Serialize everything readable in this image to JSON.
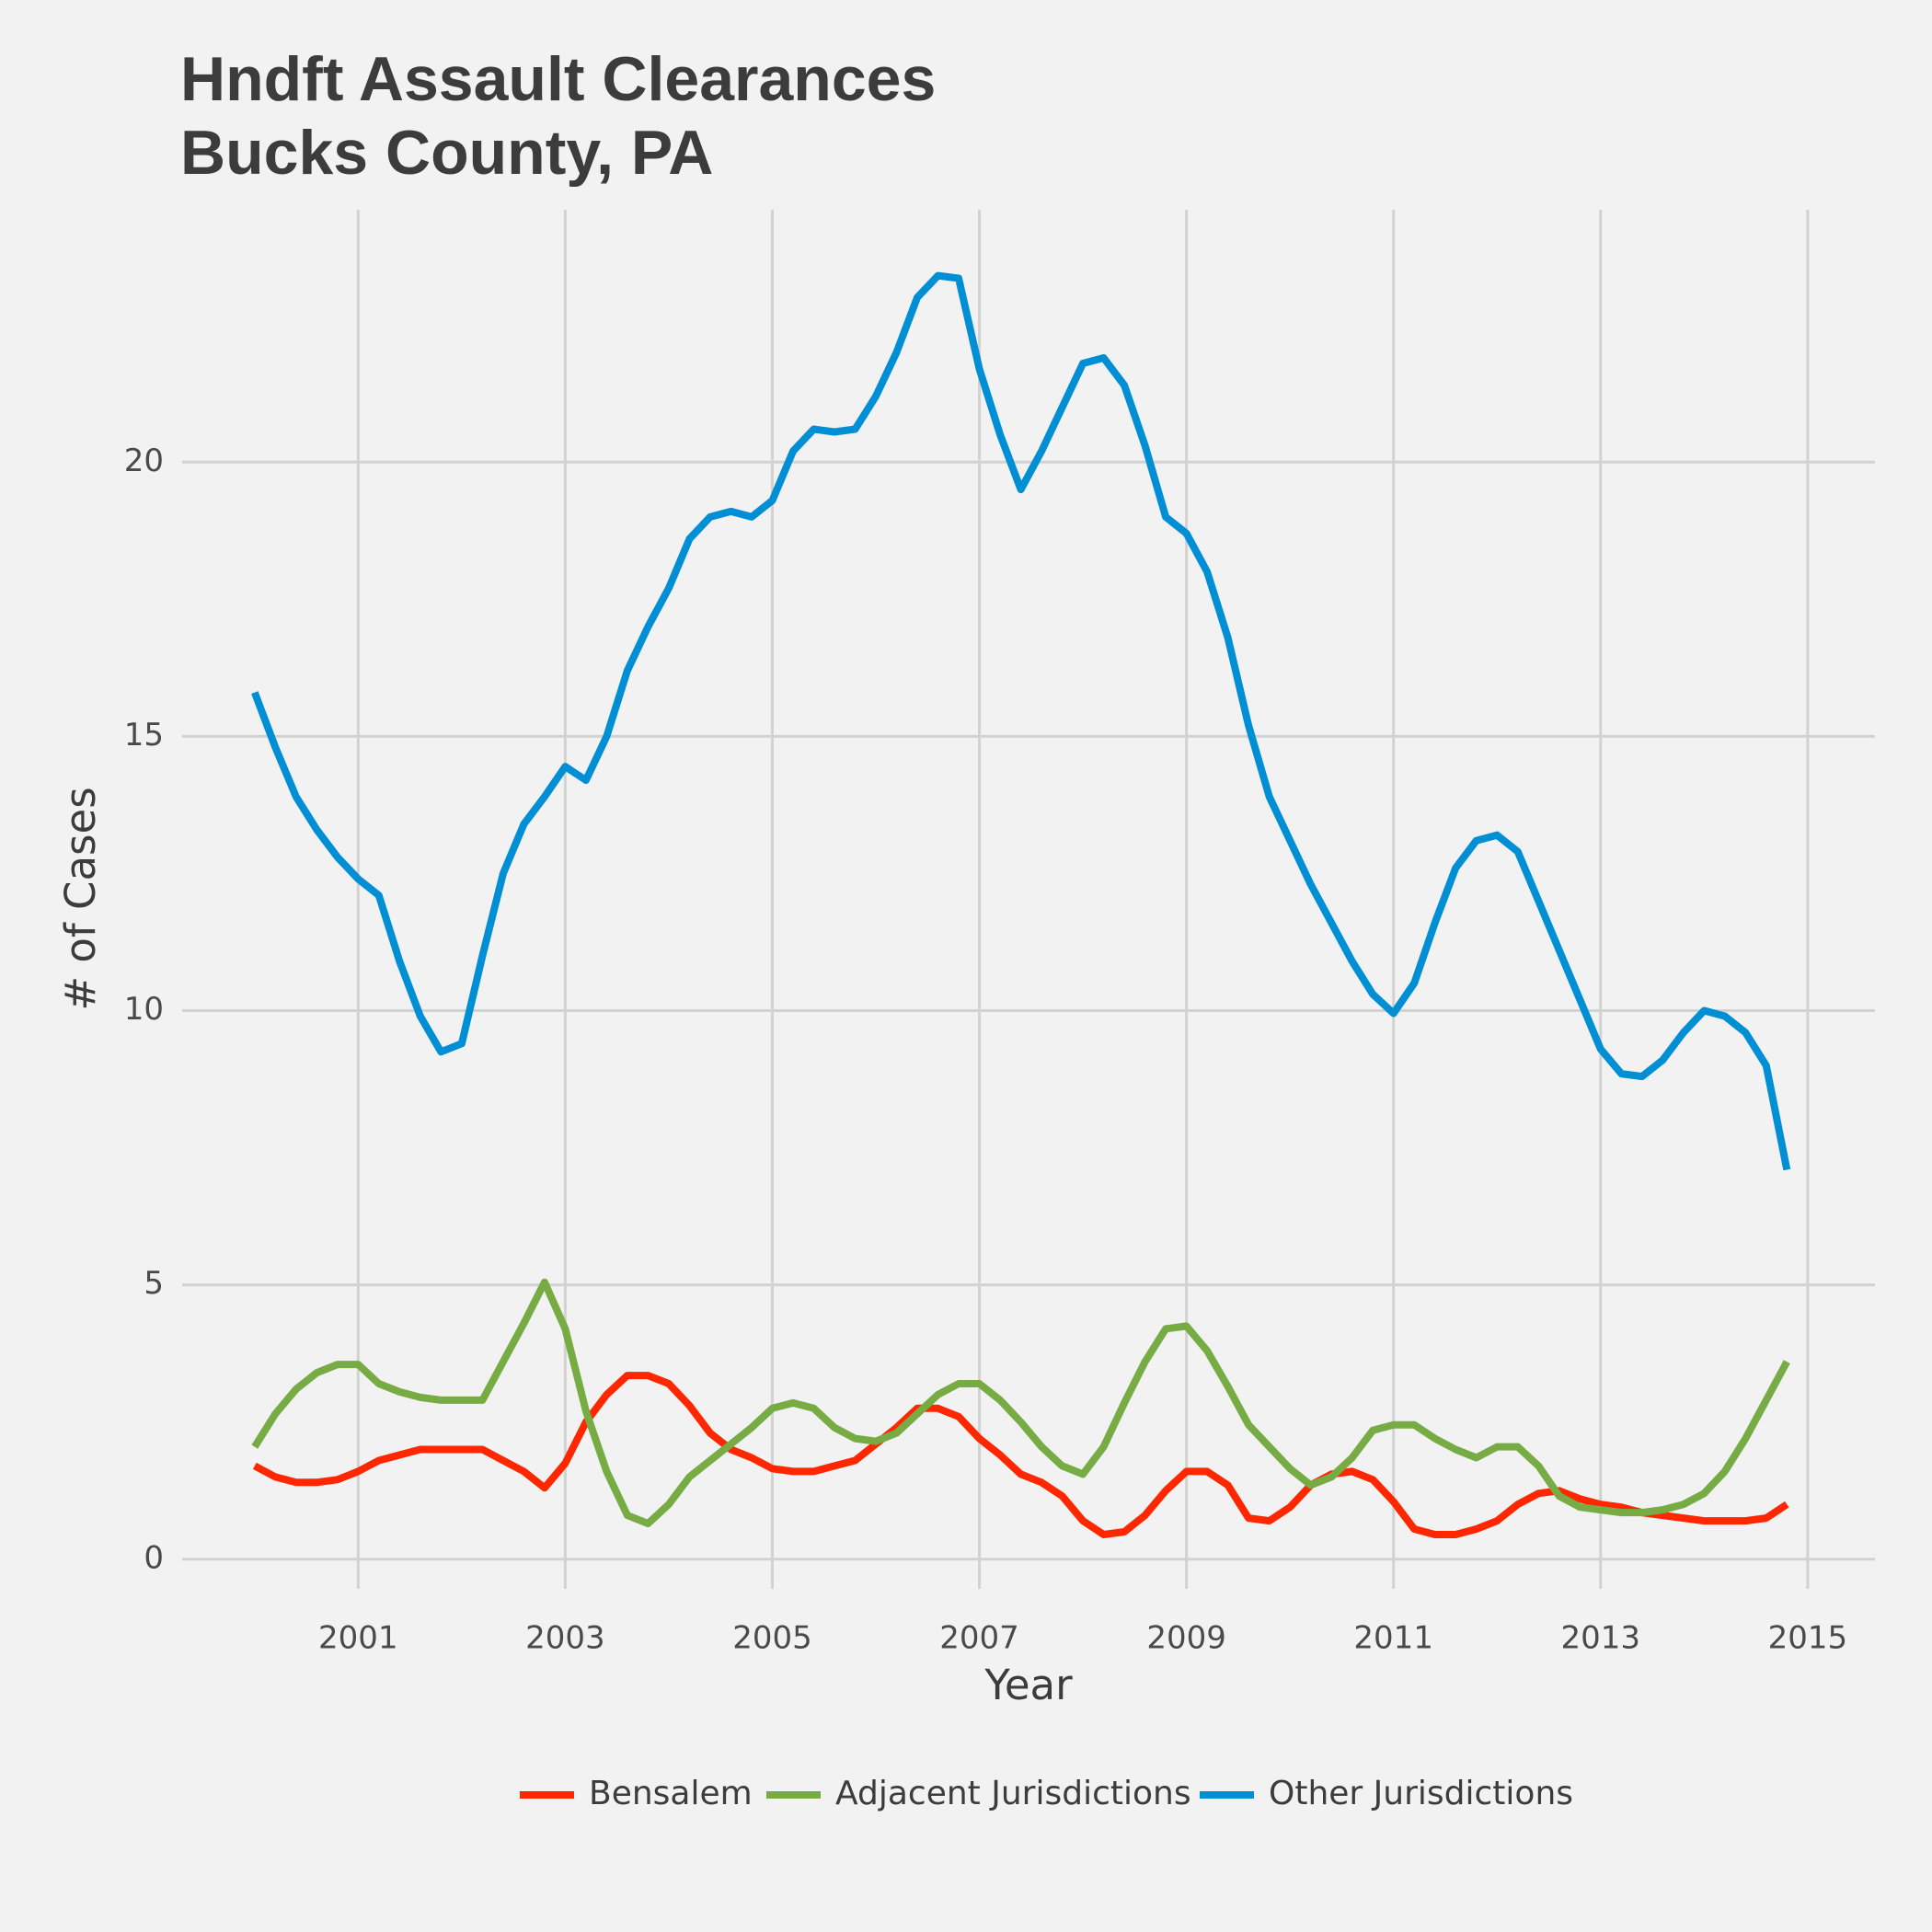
{
  "chart_data": {
    "type": "line",
    "title": [
      "Hndft Assault Clearances",
      "Bucks County, PA"
    ],
    "x_label": "Year",
    "y_label": "# of Cases",
    "x": [
      2000.0,
      2000.2,
      2000.4,
      2000.6,
      2000.8,
      2001.0,
      2001.2,
      2001.4,
      2001.6,
      2001.8,
      2002.0,
      2002.2,
      2002.4,
      2002.6,
      2002.8,
      2003.0,
      2003.2,
      2003.4,
      2003.6,
      2003.8,
      2004.0,
      2004.2,
      2004.4,
      2004.6,
      2004.8,
      2005.0,
      2005.2,
      2005.4,
      2005.6,
      2005.8,
      2006.0,
      2006.2,
      2006.4,
      2006.6,
      2006.8,
      2007.0,
      2007.2,
      2007.4,
      2007.6,
      2007.8,
      2008.0,
      2008.2,
      2008.4,
      2008.6,
      2008.8,
      2009.0,
      2009.2,
      2009.4,
      2009.6,
      2009.8,
      2010.0,
      2010.2,
      2010.4,
      2010.6,
      2010.8,
      2011.0,
      2011.2,
      2011.4,
      2011.6,
      2011.8,
      2012.0,
      2012.2,
      2012.4,
      2012.6,
      2012.8,
      2013.0,
      2013.2,
      2013.4,
      2013.6,
      2013.8,
      2014.0,
      2014.2,
      2014.4,
      2014.6,
      2014.8
    ],
    "series": [
      {
        "name": "Bensalem",
        "color": "#ff2700",
        "values": [
          1.7,
          1.5,
          1.4,
          1.4,
          1.45,
          1.6,
          1.8,
          1.9,
          2.0,
          2.0,
          2.0,
          2.0,
          1.8,
          1.6,
          1.3,
          1.75,
          2.5,
          3.0,
          3.35,
          3.35,
          3.2,
          2.8,
          2.3,
          2.0,
          1.85,
          1.65,
          1.6,
          1.6,
          1.7,
          1.8,
          2.1,
          2.4,
          2.75,
          2.75,
          2.6,
          2.2,
          1.9,
          1.55,
          1.4,
          1.15,
          0.7,
          0.45,
          0.5,
          0.8,
          1.25,
          1.6,
          1.6,
          1.35,
          0.75,
          0.7,
          0.95,
          1.35,
          1.55,
          1.6,
          1.45,
          1.05,
          0.55,
          0.45,
          0.45,
          0.55,
          0.7,
          1.0,
          1.2,
          1.25,
          1.1,
          1.0,
          0.95,
          0.85,
          0.8,
          0.75,
          0.7,
          0.7,
          0.7,
          0.75,
          1.0
        ]
      },
      {
        "name": "Adjacent Jurisdictions",
        "color": "#77ab43",
        "values": [
          2.05,
          2.65,
          3.1,
          3.4,
          3.55,
          3.55,
          3.2,
          3.05,
          2.95,
          2.9,
          2.9,
          2.9,
          3.6,
          4.3,
          5.05,
          4.2,
          2.7,
          1.6,
          0.8,
          0.65,
          1.0,
          1.5,
          1.8,
          2.1,
          2.4,
          2.75,
          2.85,
          2.75,
          2.4,
          2.2,
          2.15,
          2.3,
          2.65,
          3.0,
          3.2,
          3.2,
          2.9,
          2.5,
          2.05,
          1.7,
          1.55,
          2.05,
          2.85,
          3.6,
          4.2,
          4.25,
          3.8,
          3.15,
          2.45,
          2.05,
          1.65,
          1.35,
          1.5,
          1.85,
          2.35,
          2.45,
          2.45,
          2.2,
          2.0,
          1.85,
          2.05,
          2.05,
          1.7,
          1.15,
          0.95,
          0.9,
          0.85,
          0.85,
          0.9,
          1.0,
          1.2,
          1.6,
          2.2,
          2.9,
          3.6
        ]
      },
      {
        "name": "Other Jurisdictions",
        "color": "#008fd5",
        "values": [
          15.8,
          14.8,
          13.9,
          13.3,
          12.8,
          12.4,
          12.1,
          10.9,
          9.9,
          9.25,
          9.4,
          11.0,
          12.5,
          13.4,
          13.9,
          14.45,
          14.2,
          15.0,
          16.2,
          17.0,
          17.7,
          18.6,
          19.0,
          19.1,
          19.0,
          19.3,
          20.2,
          20.6,
          20.55,
          20.6,
          21.2,
          22.0,
          23.0,
          23.4,
          23.35,
          21.7,
          20.5,
          19.5,
          20.2,
          21.0,
          21.8,
          21.9,
          21.4,
          20.3,
          19.0,
          18.7,
          18.0,
          16.8,
          15.2,
          13.9,
          13.1,
          12.3,
          11.6,
          10.9,
          10.3,
          9.95,
          10.5,
          11.6,
          12.6,
          13.1,
          13.2,
          12.9,
          12.0,
          11.1,
          10.2,
          9.3,
          8.85,
          8.8,
          9.1,
          9.6,
          10.0,
          9.9,
          9.6,
          9.0,
          7.1
        ]
      }
    ],
    "xlim": [
      1999.3,
      2015.65
    ],
    "xticks": [
      2001,
      2003,
      2005,
      2007,
      2009,
      2011,
      2013,
      2015
    ],
    "ylim": [
      -0.54,
      24.6
    ],
    "yticks": [
      0,
      5,
      10,
      15,
      20
    ],
    "grid": true,
    "legend": "bottom"
  }
}
